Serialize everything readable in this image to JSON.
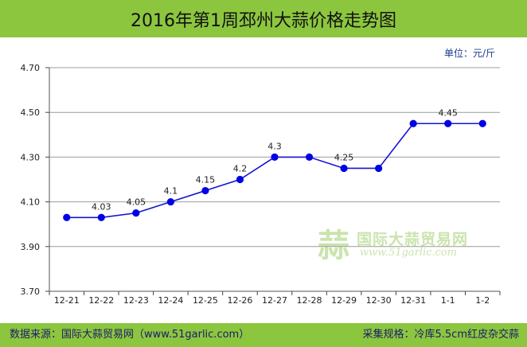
{
  "title": "2016年第1周邳州大蒜价格走势图",
  "unit": "单位：元/斤",
  "footer": {
    "source": "数据来源：国际大蒜贸易网（www.51garlic.com）",
    "spec": "采集规格：冷库5.5cm红皮杂交蒜"
  },
  "watermark": {
    "logo_char": "蒜",
    "name": "国际大蒜贸易网",
    "url": "www.51garlic.com"
  },
  "colors": {
    "banner": "#8cc63f",
    "line": "#1414d2",
    "marker": "#0000e6",
    "grid": "#9c9c9c"
  },
  "chart_data": {
    "type": "line",
    "title": "2016年第1周邳州大蒜价格走势图",
    "xlabel": "",
    "ylabel": "",
    "categories": [
      "12-21",
      "12-22",
      "12-23",
      "12-24",
      "12-25",
      "12-26",
      "12-27",
      "12-28",
      "12-29",
      "12-30",
      "12-31",
      "1-1",
      "1-2"
    ],
    "series": [
      {
        "values": [
          4.03,
          4.03,
          4.05,
          4.1,
          4.15,
          4.2,
          4.3,
          4.3,
          4.25,
          4.25,
          4.45,
          4.45,
          4.45
        ]
      }
    ],
    "data_labels": [
      {
        "index": 1,
        "text": "4.03"
      },
      {
        "index": 2,
        "text": "4.05"
      },
      {
        "index": 3,
        "text": "4.1"
      },
      {
        "index": 4,
        "text": "4.15"
      },
      {
        "index": 5,
        "text": "4.2"
      },
      {
        "index": 6,
        "text": "4.3"
      },
      {
        "index": 8,
        "text": "4.25"
      },
      {
        "index": 11,
        "text": "4.45"
      }
    ],
    "y_ticks": [
      "3.70",
      "3.90",
      "4.10",
      "4.30",
      "4.50",
      "4.70"
    ],
    "ylim": [
      3.7,
      4.7
    ],
    "grid": true,
    "legend": "none"
  }
}
